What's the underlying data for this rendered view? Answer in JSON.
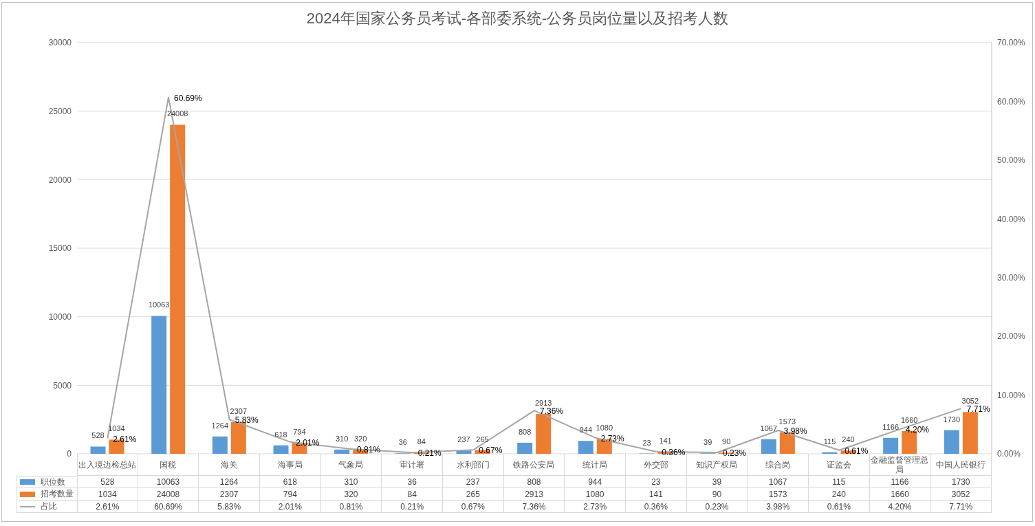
{
  "chart_data": {
    "type": "bar",
    "title": "2024年国家公务员考试-各部委系统-公务员岗位量以及招考人数",
    "categories": [
      "出入境边检总站",
      "国税",
      "海关",
      "海事局",
      "气象局",
      "审计署",
      "水利部门",
      "铁路公安局",
      "统计局",
      "外交部",
      "知识产权局",
      "综合岗",
      "证监会",
      "金融监督管理总局",
      "中国人民银行"
    ],
    "series": [
      {
        "name": "职位数",
        "color": "#5b9bd5",
        "values": [
          528,
          10063,
          1264,
          618,
          310,
          36,
          237,
          808,
          944,
          23,
          39,
          1067,
          115,
          1166,
          1730
        ],
        "value_labels": [
          "528",
          "10063",
          "1264",
          "618",
          "310",
          "36",
          "237",
          "808",
          "944",
          "23",
          "39",
          "1067",
          "115",
          "1166",
          "1730"
        ]
      },
      {
        "name": "招考数量",
        "color": "#ed7d31",
        "values": [
          1034,
          24008,
          2307,
          794,
          320,
          84,
          265,
          2913,
          1080,
          141,
          90,
          1573,
          240,
          1660,
          3052
        ],
        "value_labels": [
          "1034",
          "24008",
          "2307",
          "794",
          "320",
          "84",
          "265",
          "2913",
          "1080",
          "141",
          "90",
          "1573",
          "240",
          "1660",
          "3052"
        ]
      },
      {
        "name": "占比",
        "type": "line",
        "axis": "y2",
        "color": "#a5a5a5",
        "values": [
          2.61,
          60.69,
          5.83,
          2.01,
          0.81,
          0.21,
          0.67,
          7.36,
          2.73,
          0.36,
          0.23,
          3.98,
          0.61,
          4.2,
          7.71
        ],
        "value_labels": [
          "2.61%",
          "60.69%",
          "5.83%",
          "2.01%",
          "0.81%",
          "0.21%",
          "0.67%",
          "7.36%",
          "2.73%",
          "0.36%",
          "0.23%",
          "3.98%",
          "0.61%",
          "4.20%",
          "7.71%"
        ]
      }
    ],
    "ylim": [
      0,
      30000
    ],
    "yticks": [
      0,
      5000,
      10000,
      15000,
      20000,
      25000,
      30000
    ],
    "y2lim": [
      0,
      70
    ],
    "y2ticks": [
      {
        "value": 0,
        "label": "0.00%"
      },
      {
        "value": 10,
        "label": "10.00%"
      },
      {
        "value": 20,
        "label": "20.00%"
      },
      {
        "value": 30,
        "label": "30.00%"
      },
      {
        "value": 40,
        "label": "40.00%"
      },
      {
        "value": 50,
        "label": "50.00%"
      },
      {
        "value": 60,
        "label": "60.00%"
      },
      {
        "value": 70,
        "label": "70.00%"
      }
    ],
    "grid": "y",
    "legend": "bottom left",
    "marker": "none",
    "line_style": "solid",
    "data_labels": true
  }
}
